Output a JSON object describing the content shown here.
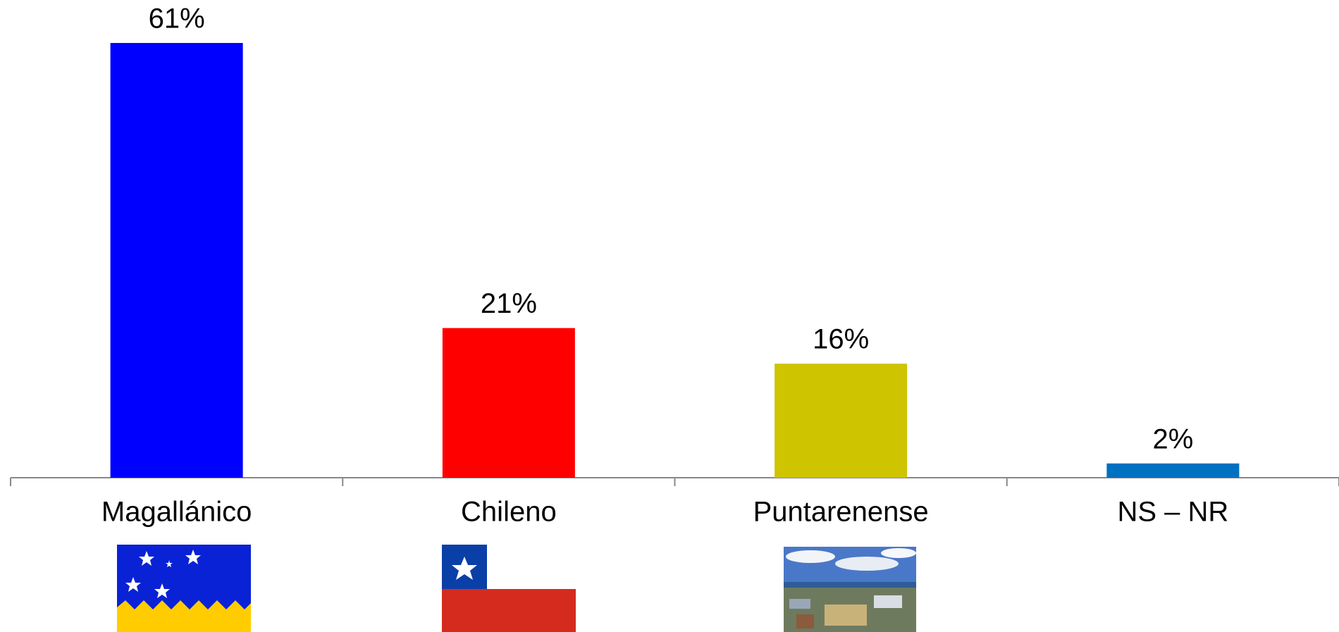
{
  "chart_data": {
    "type": "bar",
    "categories": [
      "Magallánico",
      "Chileno",
      "Puntarenense",
      "NS – NR"
    ],
    "values": [
      61,
      21,
      16,
      2
    ],
    "value_labels": [
      "61%",
      "21%",
      "16%",
      "2%"
    ],
    "colors": [
      "#0000ff",
      "#ff0000",
      "#cfc400",
      "#0070c0"
    ]
  }
}
